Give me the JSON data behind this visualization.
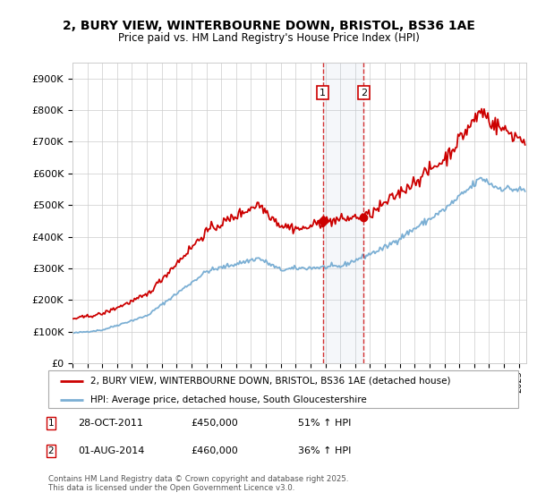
{
  "title_line1": "2, BURY VIEW, WINTERBOURNE DOWN, BRISTOL, BS36 1AE",
  "title_line2": "Price paid vs. HM Land Registry's House Price Index (HPI)",
  "background_color": "#ffffff",
  "plot_bg_color": "#ffffff",
  "grid_color": "#cccccc",
  "hpi_color": "#7bafd4",
  "price_color": "#cc0000",
  "ylim": [
    0,
    950000
  ],
  "yticks": [
    0,
    100000,
    200000,
    300000,
    400000,
    500000,
    600000,
    700000,
    800000,
    900000
  ],
  "ytick_labels": [
    "£0",
    "£100K",
    "£200K",
    "£300K",
    "£400K",
    "£500K",
    "£600K",
    "£700K",
    "£800K",
    "£900K"
  ],
  "sale1_date": 2011.83,
  "sale1_price": 450000,
  "sale1_label": "1",
  "sale2_date": 2014.58,
  "sale2_price": 460000,
  "sale2_label": "2",
  "legend_line1": "2, BURY VIEW, WINTERBOURNE DOWN, BRISTOL, BS36 1AE (detached house)",
  "legend_line2": "HPI: Average price, detached house, South Gloucestershire",
  "footer": "Contains HM Land Registry data © Crown copyright and database right 2025.\nThis data is licensed under the Open Government Licence v3.0.",
  "xmin": 1995.0,
  "xmax": 2025.5
}
